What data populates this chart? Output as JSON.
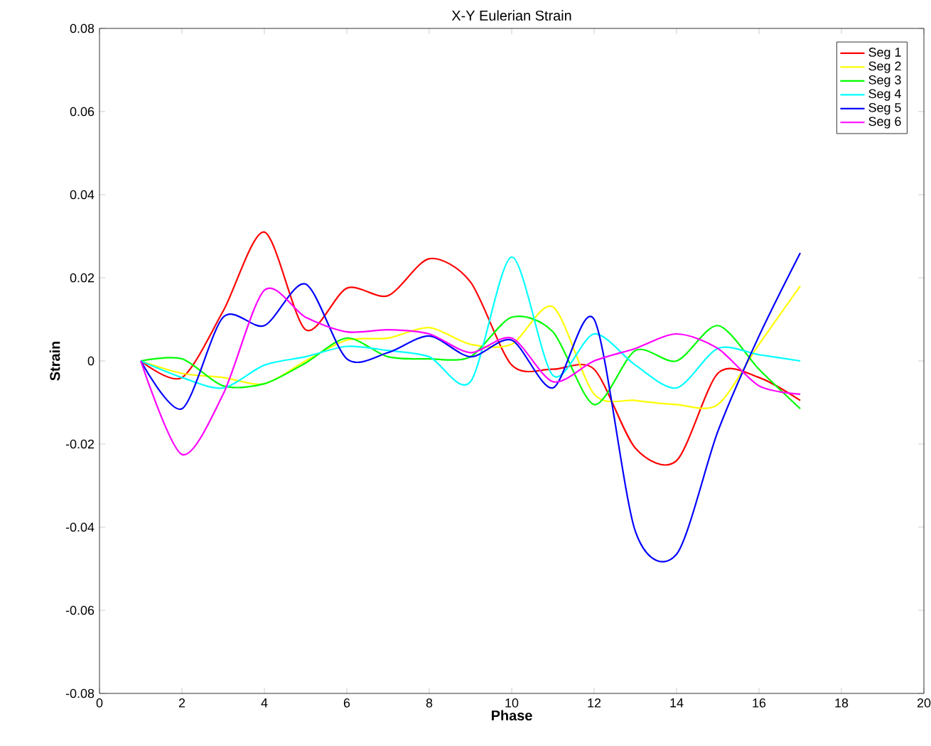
{
  "chart_data": {
    "type": "line",
    "title": "X-Y Eulerian Strain",
    "xlabel": "Phase",
    "ylabel": "Strain",
    "x": [
      1,
      2,
      3,
      4,
      5,
      6,
      7,
      8,
      9,
      10,
      11,
      12,
      13,
      14,
      15,
      16,
      17
    ],
    "series": [
      {
        "name": "Seg 1",
        "color": "#ff0000",
        "values": [
          0,
          -0.004,
          0.012,
          0.031,
          0.0075,
          0.0175,
          0.0157,
          0.0246,
          0.019,
          -0.001,
          -0.002,
          -0.002,
          -0.021,
          -0.024,
          -0.003,
          -0.004,
          -0.0095
        ]
      },
      {
        "name": "Seg 2",
        "color": "#ffff00",
        "values": [
          0,
          -0.003,
          -0.004,
          -0.0055,
          0,
          0.005,
          0.0055,
          0.008,
          0.004,
          0.004,
          0.013,
          -0.008,
          -0.0095,
          -0.0105,
          -0.0105,
          0.004,
          0.018
        ]
      },
      {
        "name": "Seg 3",
        "color": "#00ff00",
        "values": [
          0,
          0.0005,
          -0.006,
          -0.0055,
          -0.0005,
          0.0055,
          0.001,
          0.0005,
          0.001,
          0.0105,
          0.007,
          -0.0105,
          0.0025,
          0,
          0.0085,
          -0.002,
          -0.0115
        ]
      },
      {
        "name": "Seg 4",
        "color": "#00ffff",
        "values": [
          0,
          -0.004,
          -0.0065,
          -0.001,
          0.001,
          0.0035,
          0.0025,
          0.001,
          -0.005,
          0.025,
          -0.0035,
          0.0065,
          -0.001,
          -0.0065,
          0.003,
          0.0015,
          0
        ]
      },
      {
        "name": "Seg 5",
        "color": "#0000ff",
        "values": [
          0,
          -0.0115,
          0.0105,
          0.0085,
          0.0185,
          0.0005,
          0.002,
          0.006,
          0.001,
          0.005,
          -0.0065,
          0.01,
          -0.041,
          -0.0465,
          -0.017,
          0.006,
          0.026
        ]
      },
      {
        "name": "Seg 6",
        "color": "#ff00ff",
        "values": [
          0,
          -0.0225,
          -0.008,
          0.017,
          0.0105,
          0.007,
          0.0075,
          0.0065,
          0.002,
          0.0055,
          -0.005,
          0,
          0.003,
          0.0065,
          0.003,
          -0.006,
          -0.008
        ]
      }
    ],
    "xlim": [
      0,
      20
    ],
    "xticks": [
      0,
      2,
      4,
      6,
      8,
      10,
      12,
      14,
      16,
      18,
      20
    ],
    "ylim": [
      -0.08,
      0.08
    ],
    "yticks": [
      -0.08,
      -0.06,
      -0.04,
      -0.02,
      0,
      0.02,
      0.04,
      0.06,
      0.08
    ],
    "legend": "top right",
    "grid": false,
    "marker": "none",
    "line_style": "solid"
  }
}
